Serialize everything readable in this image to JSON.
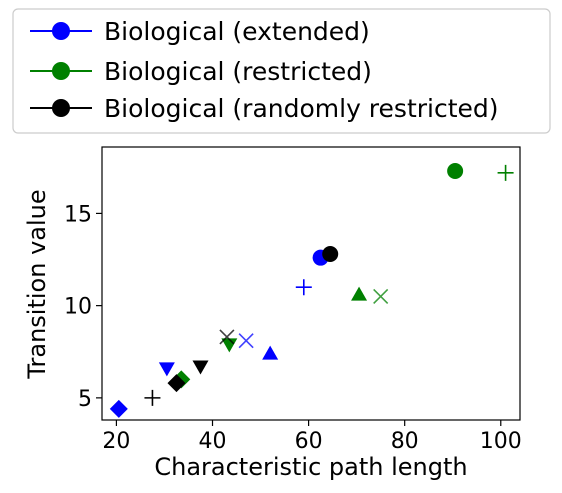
{
  "chart_data": {
    "type": "scatter",
    "title": "",
    "xlabel": "Characteristic path length",
    "ylabel": "Transition value",
    "xlim": [
      17,
      104
    ],
    "ylim": [
      3.8,
      18.6
    ],
    "xticks": [
      20,
      40,
      60,
      80,
      100
    ],
    "yticks": [
      5,
      10,
      15
    ],
    "grid": false,
    "legend": "top-left",
    "series": [
      {
        "name": "Biological (extended)",
        "color": "#0000ff",
        "points": [
          {
            "x": 20.5,
            "y": 4.4,
            "marker": "diamond"
          },
          {
            "x": 30.5,
            "y": 6.6,
            "marker": "triangle-down"
          },
          {
            "x": 47,
            "y": 8.1,
            "marker": "x"
          },
          {
            "x": 52,
            "y": 7.4,
            "marker": "triangle-up"
          },
          {
            "x": 59,
            "y": 11.0,
            "marker": "plus"
          },
          {
            "x": 62.5,
            "y": 12.6,
            "marker": "circle"
          }
        ]
      },
      {
        "name": "Biological (restricted)",
        "color": "#008000",
        "points": [
          {
            "x": 33.5,
            "y": 6.0,
            "marker": "diamond"
          },
          {
            "x": 43.5,
            "y": 7.9,
            "marker": "triangle-down"
          },
          {
            "x": 70.5,
            "y": 10.6,
            "marker": "triangle-up"
          },
          {
            "x": 75,
            "y": 10.5,
            "marker": "x"
          },
          {
            "x": 90.5,
            "y": 17.3,
            "marker": "circle"
          },
          {
            "x": 101,
            "y": 17.2,
            "marker": "plus"
          }
        ]
      },
      {
        "name": "Biological (randomly restricted)",
        "color": "#000000",
        "points": [
          {
            "x": 27.5,
            "y": 5.0,
            "marker": "plus"
          },
          {
            "x": 32.5,
            "y": 5.8,
            "marker": "diamond"
          },
          {
            "x": 37.5,
            "y": 6.7,
            "marker": "triangle-down"
          },
          {
            "x": 43,
            "y": 8.3,
            "marker": "x"
          },
          {
            "x": 64.5,
            "y": 12.8,
            "marker": "circle"
          }
        ]
      }
    ]
  }
}
